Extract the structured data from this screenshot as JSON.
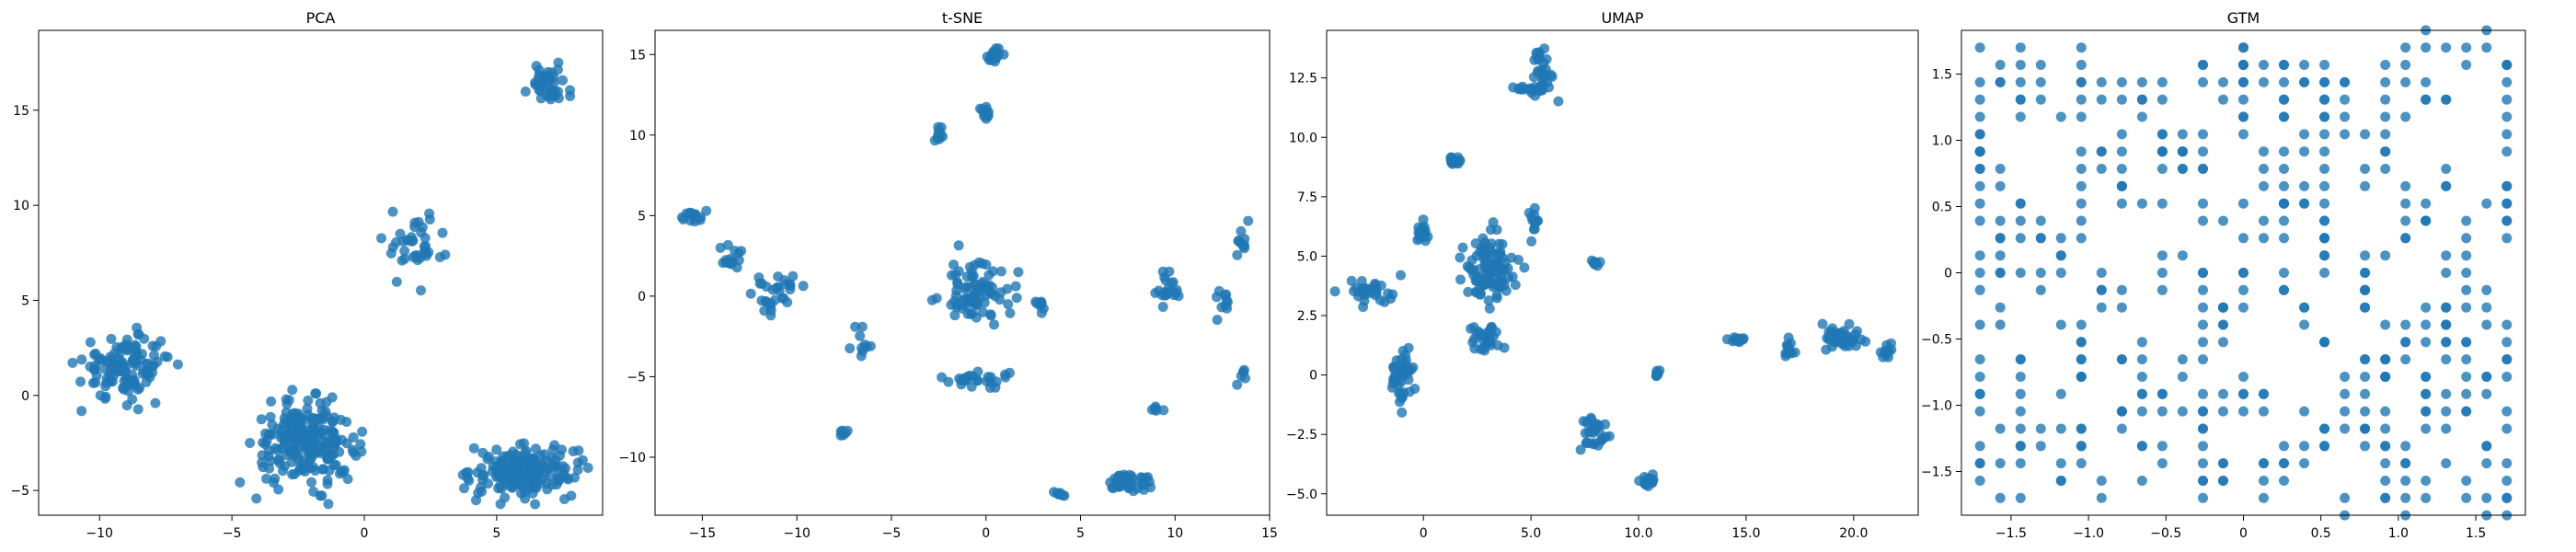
{
  "chart_data": [
    {
      "type": "scatter",
      "title": "PCA",
      "xlabel": "",
      "ylabel": "",
      "xlim": [
        -12.3,
        9.0
      ],
      "ylim": [
        -6.3,
        19.2
      ],
      "xticks": [
        -10,
        -5,
        0,
        5
      ],
      "yticks": [
        -5,
        0,
        5,
        10,
        15
      ],
      "grid": false,
      "color": "#1f77b4",
      "clusters": [
        {
          "cx": -9.0,
          "cy": 1.5,
          "sx": 1.4,
          "sy": 1.4,
          "n": 120
        },
        {
          "cx": -2.2,
          "cy": -2.5,
          "sx": 1.6,
          "sy": 1.7,
          "n": 220
        },
        {
          "cx": 6.0,
          "cy": -4.0,
          "sx": 1.6,
          "sy": 1.1,
          "n": 180
        },
        {
          "cx": 1.8,
          "cy": 8.0,
          "sx": 1.1,
          "sy": 1.4,
          "n": 40
        },
        {
          "cx": 7.0,
          "cy": 16.3,
          "sx": 0.6,
          "sy": 1.0,
          "n": 40
        }
      ]
    },
    {
      "type": "scatter",
      "title": "t-SNE",
      "xlabel": "",
      "ylabel": "",
      "xlim": [
        -17.5,
        15.0
      ],
      "ylim": [
        -13.6,
        16.5
      ],
      "xticks": [
        -15,
        -10,
        -5,
        0,
        5,
        10,
        15
      ],
      "yticks": [
        -10,
        -5,
        0,
        5,
        10,
        15
      ],
      "grid": false,
      "color": "#1f77b4",
      "clusters": [
        {
          "cx": -15.5,
          "cy": 5.0,
          "sx": 0.6,
          "sy": 0.3,
          "n": 15
        },
        {
          "cx": -13.5,
          "cy": 2.5,
          "sx": 0.4,
          "sy": 1.0,
          "n": 15
        },
        {
          "cx": -11.0,
          "cy": 0.2,
          "sx": 1.0,
          "sy": 1.0,
          "n": 30
        },
        {
          "cx": -6.5,
          "cy": -3.0,
          "sx": 0.4,
          "sy": 0.8,
          "n": 10
        },
        {
          "cx": -0.5,
          "cy": 0.3,
          "sx": 1.5,
          "sy": 1.5,
          "n": 80
        },
        {
          "cx": -0.5,
          "cy": -5.2,
          "sx": 1.5,
          "sy": 0.5,
          "n": 25
        },
        {
          "cx": 0.5,
          "cy": 15.0,
          "sx": 0.4,
          "sy": 0.4,
          "n": 20
        },
        {
          "cx": -2.5,
          "cy": 10.0,
          "sx": 0.2,
          "sy": 0.4,
          "n": 10
        },
        {
          "cx": 0.0,
          "cy": 11.5,
          "sx": 0.2,
          "sy": 0.6,
          "n": 10
        },
        {
          "cx": 2.8,
          "cy": -0.5,
          "sx": 0.3,
          "sy": 0.3,
          "n": 10
        },
        {
          "cx": 9.5,
          "cy": 0.5,
          "sx": 0.6,
          "sy": 1.0,
          "n": 20
        },
        {
          "cx": 13.5,
          "cy": 3.5,
          "sx": 0.3,
          "sy": 0.8,
          "n": 10
        },
        {
          "cx": 12.5,
          "cy": 0.0,
          "sx": 0.3,
          "sy": 1.0,
          "n": 10
        },
        {
          "cx": 7.5,
          "cy": -11.5,
          "sx": 1.0,
          "sy": 0.6,
          "n": 40
        },
        {
          "cx": 4.0,
          "cy": -12.3,
          "sx": 0.4,
          "sy": 0.2,
          "n": 8
        },
        {
          "cx": 9.0,
          "cy": -7.0,
          "sx": 0.3,
          "sy": 0.4,
          "n": 6
        },
        {
          "cx": -7.5,
          "cy": -8.5,
          "sx": 0.3,
          "sy": 0.3,
          "n": 6
        },
        {
          "cx": 13.5,
          "cy": -5.0,
          "sx": 0.3,
          "sy": 0.3,
          "n": 6
        }
      ]
    },
    {
      "type": "scatter",
      "title": "UMAP",
      "xlabel": "",
      "ylabel": "",
      "xlim": [
        -4.5,
        23.0
      ],
      "ylim": [
        -5.9,
        14.5
      ],
      "xticks": [
        0,
        5,
        10,
        15,
        20
      ],
      "yticks": [
        -5.0,
        -2.5,
        0.0,
        2.5,
        5.0,
        7.5,
        10.0,
        12.5
      ],
      "grid": false,
      "color": "#1f77b4",
      "clusters": [
        {
          "cx": -2.5,
          "cy": 3.5,
          "sx": 1.0,
          "sy": 0.5,
          "n": 30
        },
        {
          "cx": -1.0,
          "cy": 0.0,
          "sx": 0.5,
          "sy": 1.0,
          "n": 40
        },
        {
          "cx": 0.0,
          "cy": 6.0,
          "sx": 0.3,
          "sy": 0.3,
          "n": 20
        },
        {
          "cx": 1.5,
          "cy": 9.0,
          "sx": 0.3,
          "sy": 0.2,
          "n": 15
        },
        {
          "cx": 3.0,
          "cy": 4.5,
          "sx": 1.0,
          "sy": 1.2,
          "n": 100
        },
        {
          "cx": 3.0,
          "cy": 1.5,
          "sx": 0.6,
          "sy": 0.5,
          "n": 30
        },
        {
          "cx": 5.5,
          "cy": 12.8,
          "sx": 0.4,
          "sy": 0.9,
          "n": 30
        },
        {
          "cx": 5.0,
          "cy": 12.0,
          "sx": 0.5,
          "sy": 0.2,
          "n": 15
        },
        {
          "cx": 5.2,
          "cy": 6.5,
          "sx": 0.3,
          "sy": 0.5,
          "n": 12
        },
        {
          "cx": 8.0,
          "cy": -2.5,
          "sx": 0.6,
          "sy": 0.7,
          "n": 30
        },
        {
          "cx": 10.5,
          "cy": -4.5,
          "sx": 0.3,
          "sy": 0.3,
          "n": 15
        },
        {
          "cx": 14.5,
          "cy": 1.5,
          "sx": 0.3,
          "sy": 0.2,
          "n": 12
        },
        {
          "cx": 17.0,
          "cy": 1.0,
          "sx": 0.3,
          "sy": 0.3,
          "n": 12
        },
        {
          "cx": 19.5,
          "cy": 1.5,
          "sx": 0.8,
          "sy": 0.4,
          "n": 40
        },
        {
          "cx": 21.5,
          "cy": 1.0,
          "sx": 0.3,
          "sy": 0.3,
          "n": 12
        },
        {
          "cx": 8.0,
          "cy": 4.7,
          "sx": 0.2,
          "sy": 0.1,
          "n": 8
        },
        {
          "cx": 10.8,
          "cy": 0.0,
          "sx": 0.2,
          "sy": 0.2,
          "n": 8
        }
      ]
    },
    {
      "type": "scatter",
      "title": "GTM",
      "xlabel": "",
      "ylabel": "",
      "xlim": [
        -1.82,
        1.82
      ],
      "ylim": [
        -1.83,
        1.83
      ],
      "xticks": [
        -1.5,
        -1.0,
        -0.5,
        0.0,
        0.5,
        1.0,
        1.5
      ],
      "yticks": [
        -1.5,
        -1.0,
        -0.5,
        0.0,
        0.5,
        1.0,
        1.5
      ],
      "grid": false,
      "color": "#1f77b4",
      "grid_nodes": 27,
      "n_points": 330
    }
  ]
}
